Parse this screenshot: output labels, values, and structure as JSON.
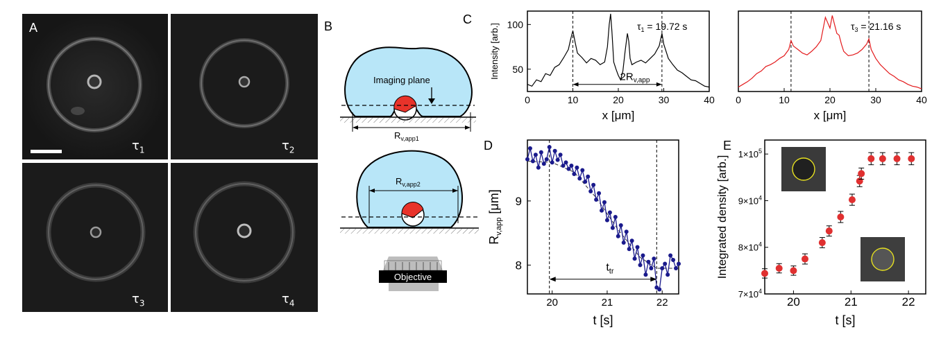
{
  "figure": {
    "panels": {
      "A": {
        "letter": "A",
        "images": [
          {
            "tau": "τ",
            "sub": "1"
          },
          {
            "tau": "τ",
            "sub": "2"
          },
          {
            "tau": "τ",
            "sub": "3"
          },
          {
            "tau": "τ",
            "sub": "4"
          }
        ]
      },
      "B": {
        "letter": "B",
        "imaging_plane": "Imaging plane",
        "r_app1": {
          "base": "R",
          "sub": "v,app1"
        },
        "r_app2": {
          "base": "R",
          "sub": "v,app2"
        },
        "objective": "Objective"
      },
      "C": {
        "letter": "C"
      },
      "D": {
        "letter": "D"
      },
      "E": {
        "letter": "E"
      }
    },
    "colors": {
      "vesicle_fill": "#b8e6f8",
      "bead_red": "#e8332a",
      "profile_black": "#000000",
      "profile_red": "#e31a1c",
      "series_blue": "#1a1a8c",
      "marker_red": "#e03030"
    }
  },
  "chart_data": [
    {
      "id": "C1",
      "type": "line",
      "title": "",
      "annotation": {
        "tau": "τ",
        "sub": "1",
        "text": " = 19.72 s"
      },
      "span_label": {
        "base": "2R",
        "sub": "v,app"
      },
      "xlabel": "x [μm]",
      "ylabel": "Intensity [arb.]",
      "xlim": [
        0,
        40
      ],
      "ylim": [
        25,
        115
      ],
      "xticks": [
        0,
        10,
        20,
        30,
        40
      ],
      "yticks": [
        50,
        100
      ],
      "vlines": [
        10,
        29.6
      ],
      "color": "#000000",
      "x": [
        0,
        1,
        2,
        3,
        4,
        5,
        6,
        7,
        8,
        9,
        9.5,
        10,
        10.5,
        11,
        12,
        13,
        14,
        15,
        16,
        17,
        17.6,
        18,
        18.3,
        18.6,
        19,
        19.5,
        20,
        20.5,
        21,
        21.5,
        22,
        22.3,
        22.6,
        23,
        24,
        25,
        26,
        27,
        28,
        29,
        29.6,
        30,
        31,
        32,
        33,
        34,
        35,
        36,
        37,
        38,
        39,
        40
      ],
      "y": [
        33,
        31,
        38,
        36,
        45,
        43,
        52,
        55,
        63,
        72,
        83,
        93,
        80,
        68,
        63,
        57,
        62,
        60,
        55,
        58,
        75,
        100,
        112,
        92,
        58,
        50,
        43,
        38,
        48,
        70,
        90,
        81,
        62,
        55,
        58,
        60,
        57,
        62,
        67,
        76,
        90,
        78,
        62,
        55,
        49,
        46,
        42,
        38,
        37,
        34,
        31,
        30
      ]
    },
    {
      "id": "C2",
      "type": "line",
      "title": "",
      "annotation": {
        "tau": "τ",
        "sub": "3",
        "text": " = 21.16 s"
      },
      "xlabel": "x [μm]",
      "ylabel": "",
      "xlim": [
        0,
        40
      ],
      "ylim": [
        25,
        115
      ],
      "xticks": [
        0,
        10,
        20,
        30,
        40
      ],
      "yticks": [],
      "vlines": [
        11.5,
        28.5
      ],
      "color": "#e31a1c",
      "x": [
        0,
        1,
        2,
        3,
        4,
        5,
        6,
        7,
        8,
        9,
        10,
        11,
        11.5,
        12,
        13,
        14,
        15,
        16,
        17,
        18,
        18.5,
        19,
        19.5,
        20,
        20.5,
        21,
        21.5,
        22,
        22.5,
        23,
        24,
        25,
        26,
        27,
        28,
        28.5,
        29,
        30,
        31,
        32,
        33,
        34,
        35,
        36,
        37,
        38,
        39,
        40
      ],
      "y": [
        30,
        33,
        36,
        40,
        45,
        48,
        53,
        55,
        58,
        62,
        65,
        72,
        82,
        76,
        72,
        68,
        66,
        70,
        75,
        82,
        95,
        108,
        102,
        96,
        110,
        100,
        90,
        88,
        78,
        70,
        65,
        66,
        68,
        72,
        78,
        84,
        72,
        62,
        55,
        50,
        45,
        42,
        38,
        36,
        33,
        31,
        30,
        28
      ]
    },
    {
      "id": "D",
      "type": "line",
      "title": "",
      "annotation": {
        "base": "t",
        "sub": "tr"
      },
      "xlabel": "t [s]",
      "ylabel": {
        "base": "R",
        "sub": "v,app",
        "unit": " [μm]"
      },
      "xlim": [
        19.55,
        22.3
      ],
      "ylim": [
        7.55,
        9.95
      ],
      "xticks": [
        20,
        21,
        22
      ],
      "yticks": [
        8,
        9
      ],
      "vlines": [
        19.95,
        21.9
      ],
      "color": "#1a1a8c",
      "x": [
        19.55,
        19.6,
        19.65,
        19.7,
        19.75,
        19.8,
        19.85,
        19.9,
        19.95,
        20.0,
        20.05,
        20.1,
        20.15,
        20.2,
        20.25,
        20.3,
        20.35,
        20.4,
        20.45,
        20.5,
        20.55,
        20.6,
        20.65,
        20.7,
        20.75,
        20.8,
        20.85,
        20.9,
        20.95,
        21.0,
        21.05,
        21.1,
        21.15,
        21.2,
        21.25,
        21.3,
        21.35,
        21.4,
        21.45,
        21.5,
        21.55,
        21.6,
        21.65,
        21.7,
        21.75,
        21.8,
        21.85,
        21.9,
        21.95,
        22.0,
        22.05,
        22.1,
        22.15,
        22.2,
        22.25,
        22.3
      ],
      "y": [
        9.65,
        9.82,
        9.62,
        9.72,
        9.52,
        9.76,
        9.58,
        9.65,
        9.84,
        9.6,
        9.78,
        9.64,
        9.72,
        9.55,
        9.6,
        9.5,
        9.55,
        9.42,
        9.52,
        9.35,
        9.48,
        9.3,
        9.38,
        9.15,
        9.25,
        9.02,
        9.12,
        8.85,
        8.98,
        8.7,
        8.82,
        8.58,
        8.75,
        8.45,
        8.62,
        8.35,
        8.52,
        8.25,
        8.38,
        8.1,
        8.28,
        8.0,
        8.15,
        7.85,
        8.05,
        7.95,
        8.1,
        7.65,
        7.62,
        7.95,
        8.02,
        7.85,
        8.15,
        8.08,
        7.95,
        8.02
      ],
      "fit_x": [
        19.55,
        20.0,
        20.4,
        20.8,
        21.2,
        21.6,
        21.9,
        22.3
      ],
      "fit_y": [
        9.62,
        9.6,
        9.45,
        9.05,
        8.55,
        8.12,
        7.95,
        7.95
      ]
    },
    {
      "id": "E",
      "type": "scatter",
      "title": "",
      "xlabel": "t [s]",
      "ylabel": "Integrated density [arb.]",
      "xlim": [
        19.5,
        22.3
      ],
      "ylim": [
        70000,
        103000
      ],
      "xticks": [
        20,
        21,
        22
      ],
      "xtick_labels": [
        "20",
        "21",
        "22"
      ],
      "yticks": [
        70000,
        80000,
        90000,
        100000
      ],
      "ytick_labels": [
        {
          "m": "7",
          "e": "4"
        },
        {
          "m": "8",
          "e": "4"
        },
        {
          "m": "9",
          "e": "4"
        },
        {
          "m": "1",
          "e": "5"
        }
      ],
      "ytick_prefix": "×10",
      "color": "#e03030",
      "x": [
        19.5,
        19.75,
        20.0,
        20.2,
        20.5,
        20.62,
        20.82,
        21.02,
        21.15,
        21.18,
        21.35,
        21.55,
        21.8,
        22.05
      ],
      "y": [
        74400,
        75500,
        75000,
        77500,
        81000,
        83500,
        86500,
        90200,
        94200,
        95800,
        99000,
        99000,
        99000,
        99000
      ],
      "err": [
        1000,
        1000,
        1000,
        1100,
        1100,
        1100,
        1200,
        1200,
        1200,
        1200,
        1300,
        1300,
        1300,
        1300
      ]
    }
  ]
}
